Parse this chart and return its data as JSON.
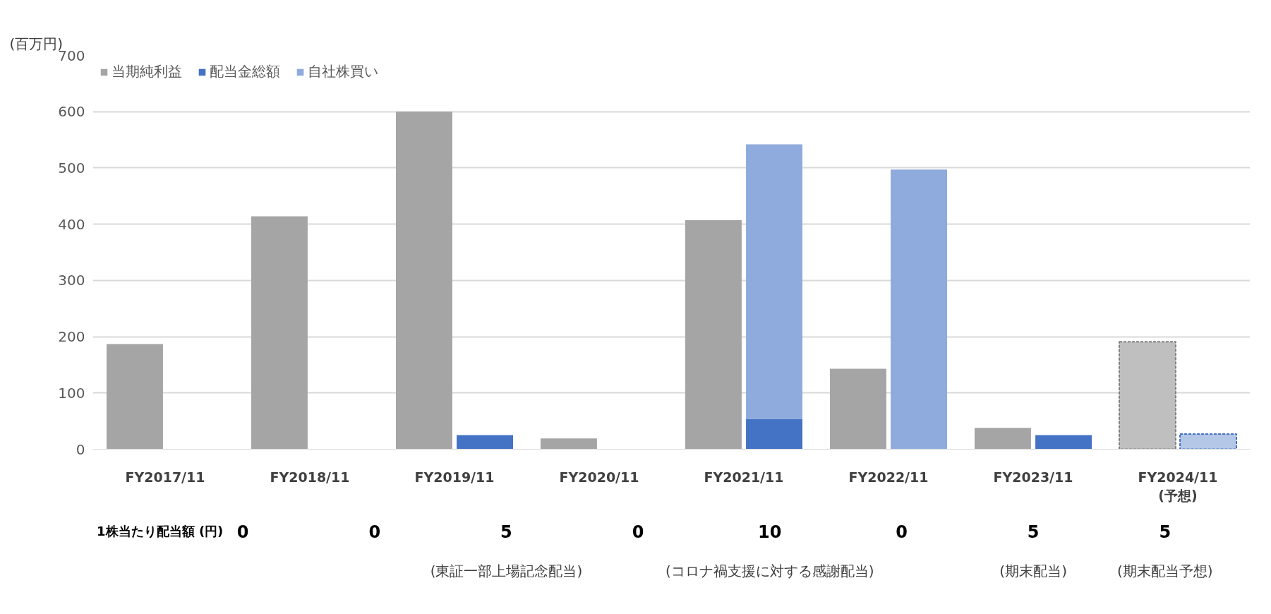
{
  "chart_data": {
    "type": "bar",
    "ylabel": "(百万円)",
    "categories": [
      "FY2017/11",
      "FY2018/11",
      "FY2019/11",
      "FY2020/11",
      "FY2021/11",
      "FY2022/11",
      "FY2023/11",
      "FY2024/11\n(予想)"
    ],
    "series": [
      {
        "name": "当期純利益",
        "color": "#a5a5a5",
        "colors": [
          "#a5a5a5",
          "#a5a5a5",
          "#a5a5a5",
          "#a5a5a5",
          "#a5a5a5",
          "#a5a5a5",
          "#a5a5a5",
          "#bfbfbf"
        ],
        "values": [
          187,
          414,
          600,
          19,
          407,
          143,
          38,
          191
        ]
      },
      {
        "name": "配当金総額",
        "color": "#4472c4",
        "colors": [
          "#4472c4",
          "#4472c4",
          "#4472c4",
          "#4472c4",
          "#4472c4",
          "#4472c4",
          "#4472c4",
          "#b4c7e7"
        ],
        "values": [
          0,
          0,
          25,
          0,
          54,
          0,
          25,
          27
        ]
      },
      {
        "name": "自社株買い",
        "color": "#8faadc",
        "values": [
          null,
          null,
          null,
          null,
          488,
          497,
          null,
          null
        ],
        "base": [
          null,
          null,
          null,
          null,
          54,
          0,
          null,
          null
        ]
      }
    ],
    "ylim": [
      0,
      700
    ],
    "yticks": [
      0,
      100,
      200,
      300,
      400,
      500,
      600,
      700
    ],
    "grid": "y",
    "legend": "top left",
    "annotations": [
      "1株当たり配当額 (円)",
      "0",
      "0",
      "5",
      "0",
      "10",
      "0",
      "5",
      "5",
      null,
      null,
      "(東証一部上場記念配当)",
      null,
      "(コロナ禍支援に対する感謝配当)",
      null,
      "(期末配当)",
      "(期末配当予想)"
    ]
  }
}
